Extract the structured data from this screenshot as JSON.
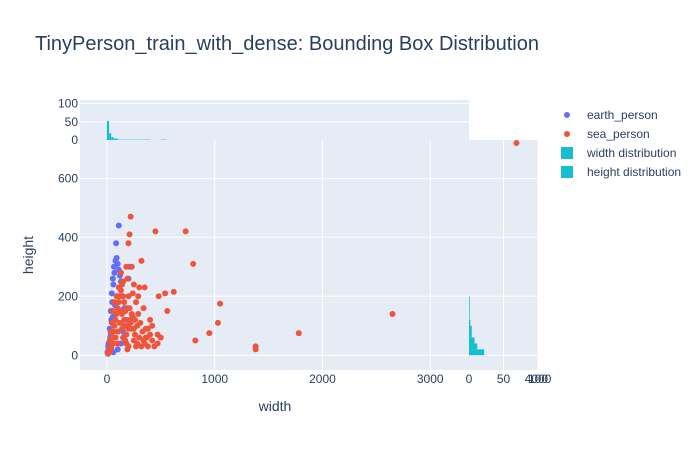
{
  "chart_data": {
    "type": "scatter",
    "title": "TinyPerson_train_with_dense: Bounding Box Distribution",
    "xlabel": "width",
    "ylabel": "height",
    "xlim": [
      -250,
      4000
    ],
    "ylim": [
      -50,
      730
    ],
    "x_ticks": [
      "0",
      "1000",
      "2000",
      "3000",
      "4000"
    ],
    "y_ticks": [
      "0",
      "200",
      "400",
      "600"
    ],
    "series": [
      {
        "name": "earth_person",
        "color": "#636efa",
        "points": [
          [
            10,
            5
          ],
          [
            20,
            15
          ],
          [
            15,
            40
          ],
          [
            30,
            60
          ],
          [
            25,
            90
          ],
          [
            40,
            120
          ],
          [
            35,
            150
          ],
          [
            50,
            180
          ],
          [
            45,
            210
          ],
          [
            60,
            240
          ],
          [
            55,
            260
          ],
          [
            70,
            280
          ],
          [
            65,
            300
          ],
          [
            80,
            320
          ],
          [
            90,
            330
          ],
          [
            100,
            310
          ],
          [
            110,
            290
          ],
          [
            120,
            270
          ],
          [
            130,
            250
          ],
          [
            85,
            380
          ],
          [
            110,
            440
          ],
          [
            20,
            25
          ],
          [
            35,
            70
          ],
          [
            55,
            130
          ],
          [
            75,
            170
          ],
          [
            95,
            200
          ],
          [
            115,
            230
          ],
          [
            140,
            200
          ],
          [
            160,
            160
          ],
          [
            180,
            120
          ],
          [
            150,
            80
          ],
          [
            130,
            40
          ],
          [
            100,
            20
          ],
          [
            60,
            10
          ],
          [
            200,
            260
          ],
          [
            210,
            300
          ],
          [
            5,
            10
          ],
          [
            12,
            30
          ],
          [
            28,
            50
          ]
        ]
      },
      {
        "name": "sea_person",
        "color": "#ef553b",
        "points": [
          [
            3800,
            720
          ],
          [
            2650,
            140
          ],
          [
            1780,
            75
          ],
          [
            1380,
            20
          ],
          [
            1380,
            30
          ],
          [
            1050,
            175
          ],
          [
            1030,
            110
          ],
          [
            950,
            75
          ],
          [
            820,
            50
          ],
          [
            800,
            310
          ],
          [
            730,
            420
          ],
          [
            620,
            215
          ],
          [
            560,
            150
          ],
          [
            540,
            210
          ],
          [
            480,
            200
          ],
          [
            500,
            60
          ],
          [
            470,
            70
          ],
          [
            470,
            40
          ],
          [
            450,
            420
          ],
          [
            420,
            100
          ],
          [
            400,
            120
          ],
          [
            380,
            90
          ],
          [
            360,
            60
          ],
          [
            350,
            230
          ],
          [
            340,
            160
          ],
          [
            320,
            320
          ],
          [
            300,
            230
          ],
          [
            290,
            200
          ],
          [
            280,
            100
          ],
          [
            270,
            180
          ],
          [
            260,
            120
          ],
          [
            250,
            240
          ],
          [
            240,
            210
          ],
          [
            230,
            300
          ],
          [
            220,
            470
          ],
          [
            210,
            410
          ],
          [
            200,
            380
          ],
          [
            190,
            260
          ],
          [
            180,
            300
          ],
          [
            170,
            150
          ],
          [
            160,
            180
          ],
          [
            150,
            200
          ],
          [
            140,
            240
          ],
          [
            130,
            220
          ],
          [
            120,
            200
          ],
          [
            110,
            180
          ],
          [
            100,
            160
          ],
          [
            90,
            140
          ],
          [
            80,
            120
          ],
          [
            70,
            100
          ],
          [
            60,
            80
          ],
          [
            50,
            60
          ],
          [
            40,
            40
          ],
          [
            30,
            20
          ],
          [
            20,
            10
          ],
          [
            10,
            5
          ],
          [
            150,
            60
          ],
          [
            180,
            40
          ],
          [
            200,
            90
          ],
          [
            220,
            110
          ],
          [
            240,
            130
          ],
          [
            260,
            70
          ],
          [
            280,
            40
          ],
          [
            300,
            60
          ],
          [
            320,
            30
          ],
          [
            340,
            50
          ],
          [
            360,
            90
          ],
          [
            380,
            30
          ],
          [
            400,
            70
          ],
          [
            420,
            50
          ],
          [
            440,
            30
          ],
          [
            200,
            30
          ],
          [
            100,
            80
          ],
          [
            120,
            110
          ],
          [
            140,
            140
          ],
          [
            160,
            100
          ],
          [
            180,
            70
          ],
          [
            210,
            160
          ],
          [
            230,
            140
          ],
          [
            250,
            50
          ],
          [
            270,
            30
          ],
          [
            150,
            250
          ],
          [
            130,
            280
          ],
          [
            110,
            230
          ],
          [
            90,
            200
          ],
          [
            70,
            180
          ],
          [
            55,
            150
          ],
          [
            45,
            110
          ],
          [
            35,
            80
          ],
          [
            25,
            50
          ],
          [
            15,
            20
          ],
          [
            160,
            120
          ],
          [
            190,
            100
          ],
          [
            210,
            120
          ],
          [
            230,
            90
          ],
          [
            180,
            160
          ],
          [
            200,
            200
          ],
          [
            120,
            150
          ],
          [
            140,
            90
          ],
          [
            170,
            50
          ],
          [
            190,
            20
          ],
          [
            100,
            40
          ],
          [
            80,
            60
          ],
          [
            60,
            40
          ],
          [
            40,
            25
          ],
          [
            250,
            90
          ],
          [
            290,
            140
          ],
          [
            310,
            110
          ],
          [
            330,
            80
          ],
          [
            350,
            40
          ],
          [
            370,
            60
          ]
        ]
      }
    ],
    "histograms": [
      {
        "name": "width distribution",
        "color": "#17becf",
        "axis_ticks": [
          "0",
          "50",
          "100"
        ],
        "bins": [
          {
            "from": 0,
            "to": 20,
            "count": 52
          },
          {
            "from": 20,
            "to": 40,
            "count": 18
          },
          {
            "from": 40,
            "to": 60,
            "count": 8
          },
          {
            "from": 60,
            "to": 100,
            "count": 4
          },
          {
            "from": 100,
            "to": 400,
            "count": 1
          },
          {
            "from": 500,
            "to": 550,
            "count": 1
          }
        ]
      },
      {
        "name": "height distribution",
        "color": "#17becf",
        "axis_ticks": [
          "0",
          "50",
          "100"
        ],
        "bins": [
          {
            "from": 0,
            "to": 20,
            "count": 22
          },
          {
            "from": 20,
            "to": 40,
            "count": 12
          },
          {
            "from": 40,
            "to": 60,
            "count": 8
          },
          {
            "from": 60,
            "to": 100,
            "count": 4
          },
          {
            "from": 100,
            "to": 120,
            "count": 2
          },
          {
            "from": 120,
            "to": 200,
            "count": 1
          }
        ]
      }
    ],
    "legend_position": "right",
    "plot_bgcolor": "#e5ecf6",
    "grid": true
  }
}
